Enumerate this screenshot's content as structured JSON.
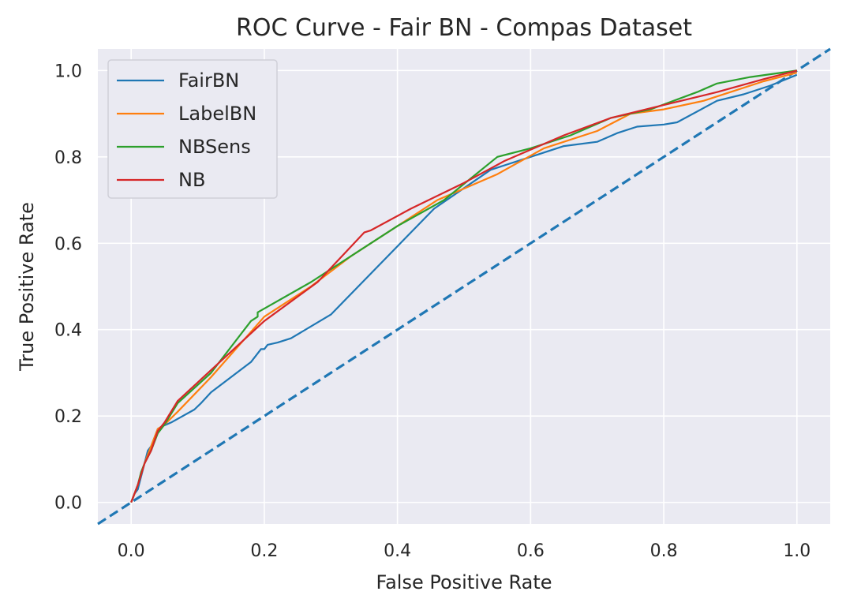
{
  "chart_data": {
    "type": "line",
    "title": "ROC Curve - Fair BN - Compas Dataset",
    "xlabel": "False Positive Rate",
    "ylabel": "True Positive Rate",
    "xlim": [
      -0.05,
      1.05
    ],
    "ylim": [
      -0.05,
      1.05
    ],
    "xticks": [
      0.0,
      0.2,
      0.4,
      0.6,
      0.8,
      1.0
    ],
    "yticks": [
      0.0,
      0.2,
      0.4,
      0.6,
      0.8,
      1.0
    ],
    "xtick_labels": [
      "0.0",
      "0.2",
      "0.4",
      "0.6",
      "0.8",
      "1.0"
    ],
    "ytick_labels": [
      "0.0",
      "0.2",
      "0.4",
      "0.6",
      "0.8",
      "1.0"
    ],
    "grid": true,
    "background": "#EAEAF2",
    "legend_position": "top-left",
    "series": [
      {
        "name": "FairBN",
        "color": "#1f77b4",
        "x": [
          0.0,
          0.005,
          0.01,
          0.015,
          0.02,
          0.025,
          0.03,
          0.035,
          0.04,
          0.045,
          0.06,
          0.095,
          0.105,
          0.12,
          0.18,
          0.195,
          0.2,
          0.205,
          0.22,
          0.24,
          0.3,
          0.455,
          0.54,
          0.6,
          0.65,
          0.7,
          0.73,
          0.76,
          0.8,
          0.82,
          0.88,
          0.92,
          0.96,
          1.0
        ],
        "y": [
          0.0,
          0.02,
          0.03,
          0.06,
          0.09,
          0.12,
          0.13,
          0.15,
          0.17,
          0.175,
          0.185,
          0.215,
          0.23,
          0.255,
          0.325,
          0.355,
          0.355,
          0.365,
          0.37,
          0.38,
          0.435,
          0.68,
          0.77,
          0.8,
          0.825,
          0.835,
          0.855,
          0.87,
          0.875,
          0.88,
          0.93,
          0.945,
          0.965,
          0.99
        ]
      },
      {
        "name": "LabelBN",
        "color": "#ff7f0e",
        "x": [
          0.0,
          0.005,
          0.01,
          0.02,
          0.03,
          0.035,
          0.04,
          0.05,
          0.07,
          0.12,
          0.2,
          0.27,
          0.33,
          0.37,
          0.4,
          0.46,
          0.55,
          0.62,
          0.7,
          0.75,
          0.8,
          0.86,
          0.9,
          0.95,
          1.0
        ],
        "y": [
          0.0,
          0.02,
          0.04,
          0.09,
          0.13,
          0.15,
          0.17,
          0.18,
          0.21,
          0.29,
          0.43,
          0.5,
          0.57,
          0.61,
          0.64,
          0.7,
          0.76,
          0.82,
          0.86,
          0.9,
          0.91,
          0.93,
          0.95,
          0.975,
          0.995
        ]
      },
      {
        "name": "NBSens",
        "color": "#2ca02c",
        "x": [
          0.0,
          0.005,
          0.01,
          0.015,
          0.02,
          0.03,
          0.035,
          0.04,
          0.05,
          0.07,
          0.12,
          0.18,
          0.19,
          0.19,
          0.27,
          0.34,
          0.4,
          0.47,
          0.55,
          0.6,
          0.66,
          0.72,
          0.78,
          0.85,
          0.88,
          0.93,
          1.0
        ],
        "y": [
          0.0,
          0.02,
          0.04,
          0.07,
          0.09,
          0.12,
          0.14,
          0.16,
          0.18,
          0.23,
          0.3,
          0.42,
          0.43,
          0.44,
          0.51,
          0.58,
          0.64,
          0.7,
          0.8,
          0.82,
          0.85,
          0.89,
          0.91,
          0.95,
          0.97,
          0.985,
          1.0
        ]
      },
      {
        "name": "NB",
        "color": "#d62728",
        "x": [
          0.0,
          0.005,
          0.01,
          0.02,
          0.03,
          0.04,
          0.05,
          0.07,
          0.2,
          0.28,
          0.35,
          0.36,
          0.42,
          0.5,
          0.56,
          0.65,
          0.72,
          0.8,
          0.88,
          0.95,
          1.0
        ],
        "y": [
          0.0,
          0.02,
          0.04,
          0.09,
          0.12,
          0.165,
          0.185,
          0.235,
          0.42,
          0.51,
          0.625,
          0.63,
          0.68,
          0.74,
          0.79,
          0.85,
          0.89,
          0.92,
          0.95,
          0.98,
          1.0
        ]
      }
    ],
    "reference_line": {
      "color": "#1f77b4",
      "style": "dashed",
      "x": [
        -0.05,
        1.05
      ],
      "y": [
        -0.05,
        1.05
      ]
    }
  }
}
